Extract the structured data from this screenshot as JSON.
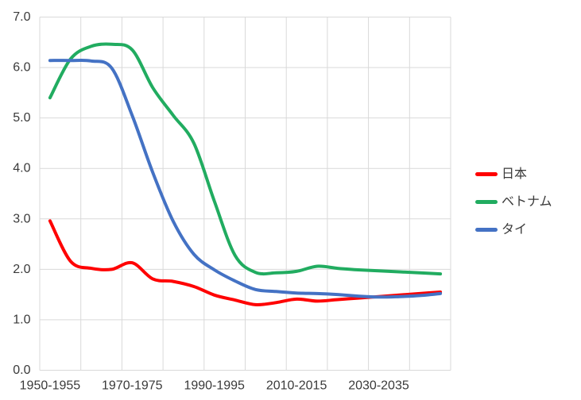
{
  "chart_data": {
    "type": "line",
    "title": "",
    "smoothed_lines": true,
    "categories": [
      "1950-1955",
      "1955-1960",
      "1960-1965",
      "1965-1970",
      "1970-1975",
      "1975-1980",
      "1980-1985",
      "1985-1990",
      "1990-1995",
      "1995-2000",
      "2000-2005",
      "2005-2010",
      "2010-2015",
      "2015-2020",
      "2020-2025",
      "2025-2030",
      "2030-2035",
      "2035-2040",
      "2040-2045",
      "2045-2050"
    ],
    "x_axis": {
      "tick_label_indices": [
        0,
        4,
        8,
        12,
        16
      ],
      "tick_labels": [
        "1950-1955",
        "1970-1975",
        "1990-1995",
        "2010-2015",
        "2030-2035"
      ],
      "gridline_every_n_categories": 2
    },
    "y_axis": {
      "min": 0,
      "max": 7,
      "step": 1,
      "tick_labels": [
        "0.0",
        "1.0",
        "2.0",
        "3.0",
        "4.0",
        "5.0",
        "6.0",
        "7.0"
      ]
    },
    "grid": true,
    "legend_position": "right",
    "series": [
      {
        "name": "日本",
        "color": "#FF0000",
        "values": [
          2.96,
          2.16,
          2.02,
          2.0,
          2.13,
          1.81,
          1.76,
          1.66,
          1.49,
          1.39,
          1.3,
          1.34,
          1.41,
          1.37,
          1.4,
          1.43,
          1.46,
          1.49,
          1.52,
          1.55
        ]
      },
      {
        "name": "ベトナム",
        "color": "#21AC60",
        "values": [
          5.4,
          6.17,
          6.42,
          6.46,
          6.35,
          5.6,
          5.05,
          4.5,
          3.35,
          2.28,
          1.94,
          1.93,
          1.96,
          2.06,
          2.02,
          1.99,
          1.97,
          1.95,
          1.93,
          1.91
        ]
      },
      {
        "name": "タイ",
        "color": "#4472C4",
        "values": [
          6.14,
          6.14,
          6.13,
          5.99,
          5.05,
          3.92,
          2.95,
          2.3,
          1.99,
          1.77,
          1.6,
          1.56,
          1.53,
          1.52,
          1.5,
          1.47,
          1.45,
          1.46,
          1.48,
          1.52
        ]
      }
    ]
  },
  "style": {
    "grid_color": "#D9D9D9",
    "text_color": "#3a3a3a",
    "background": "#FFFFFF",
    "line_width": 4
  }
}
